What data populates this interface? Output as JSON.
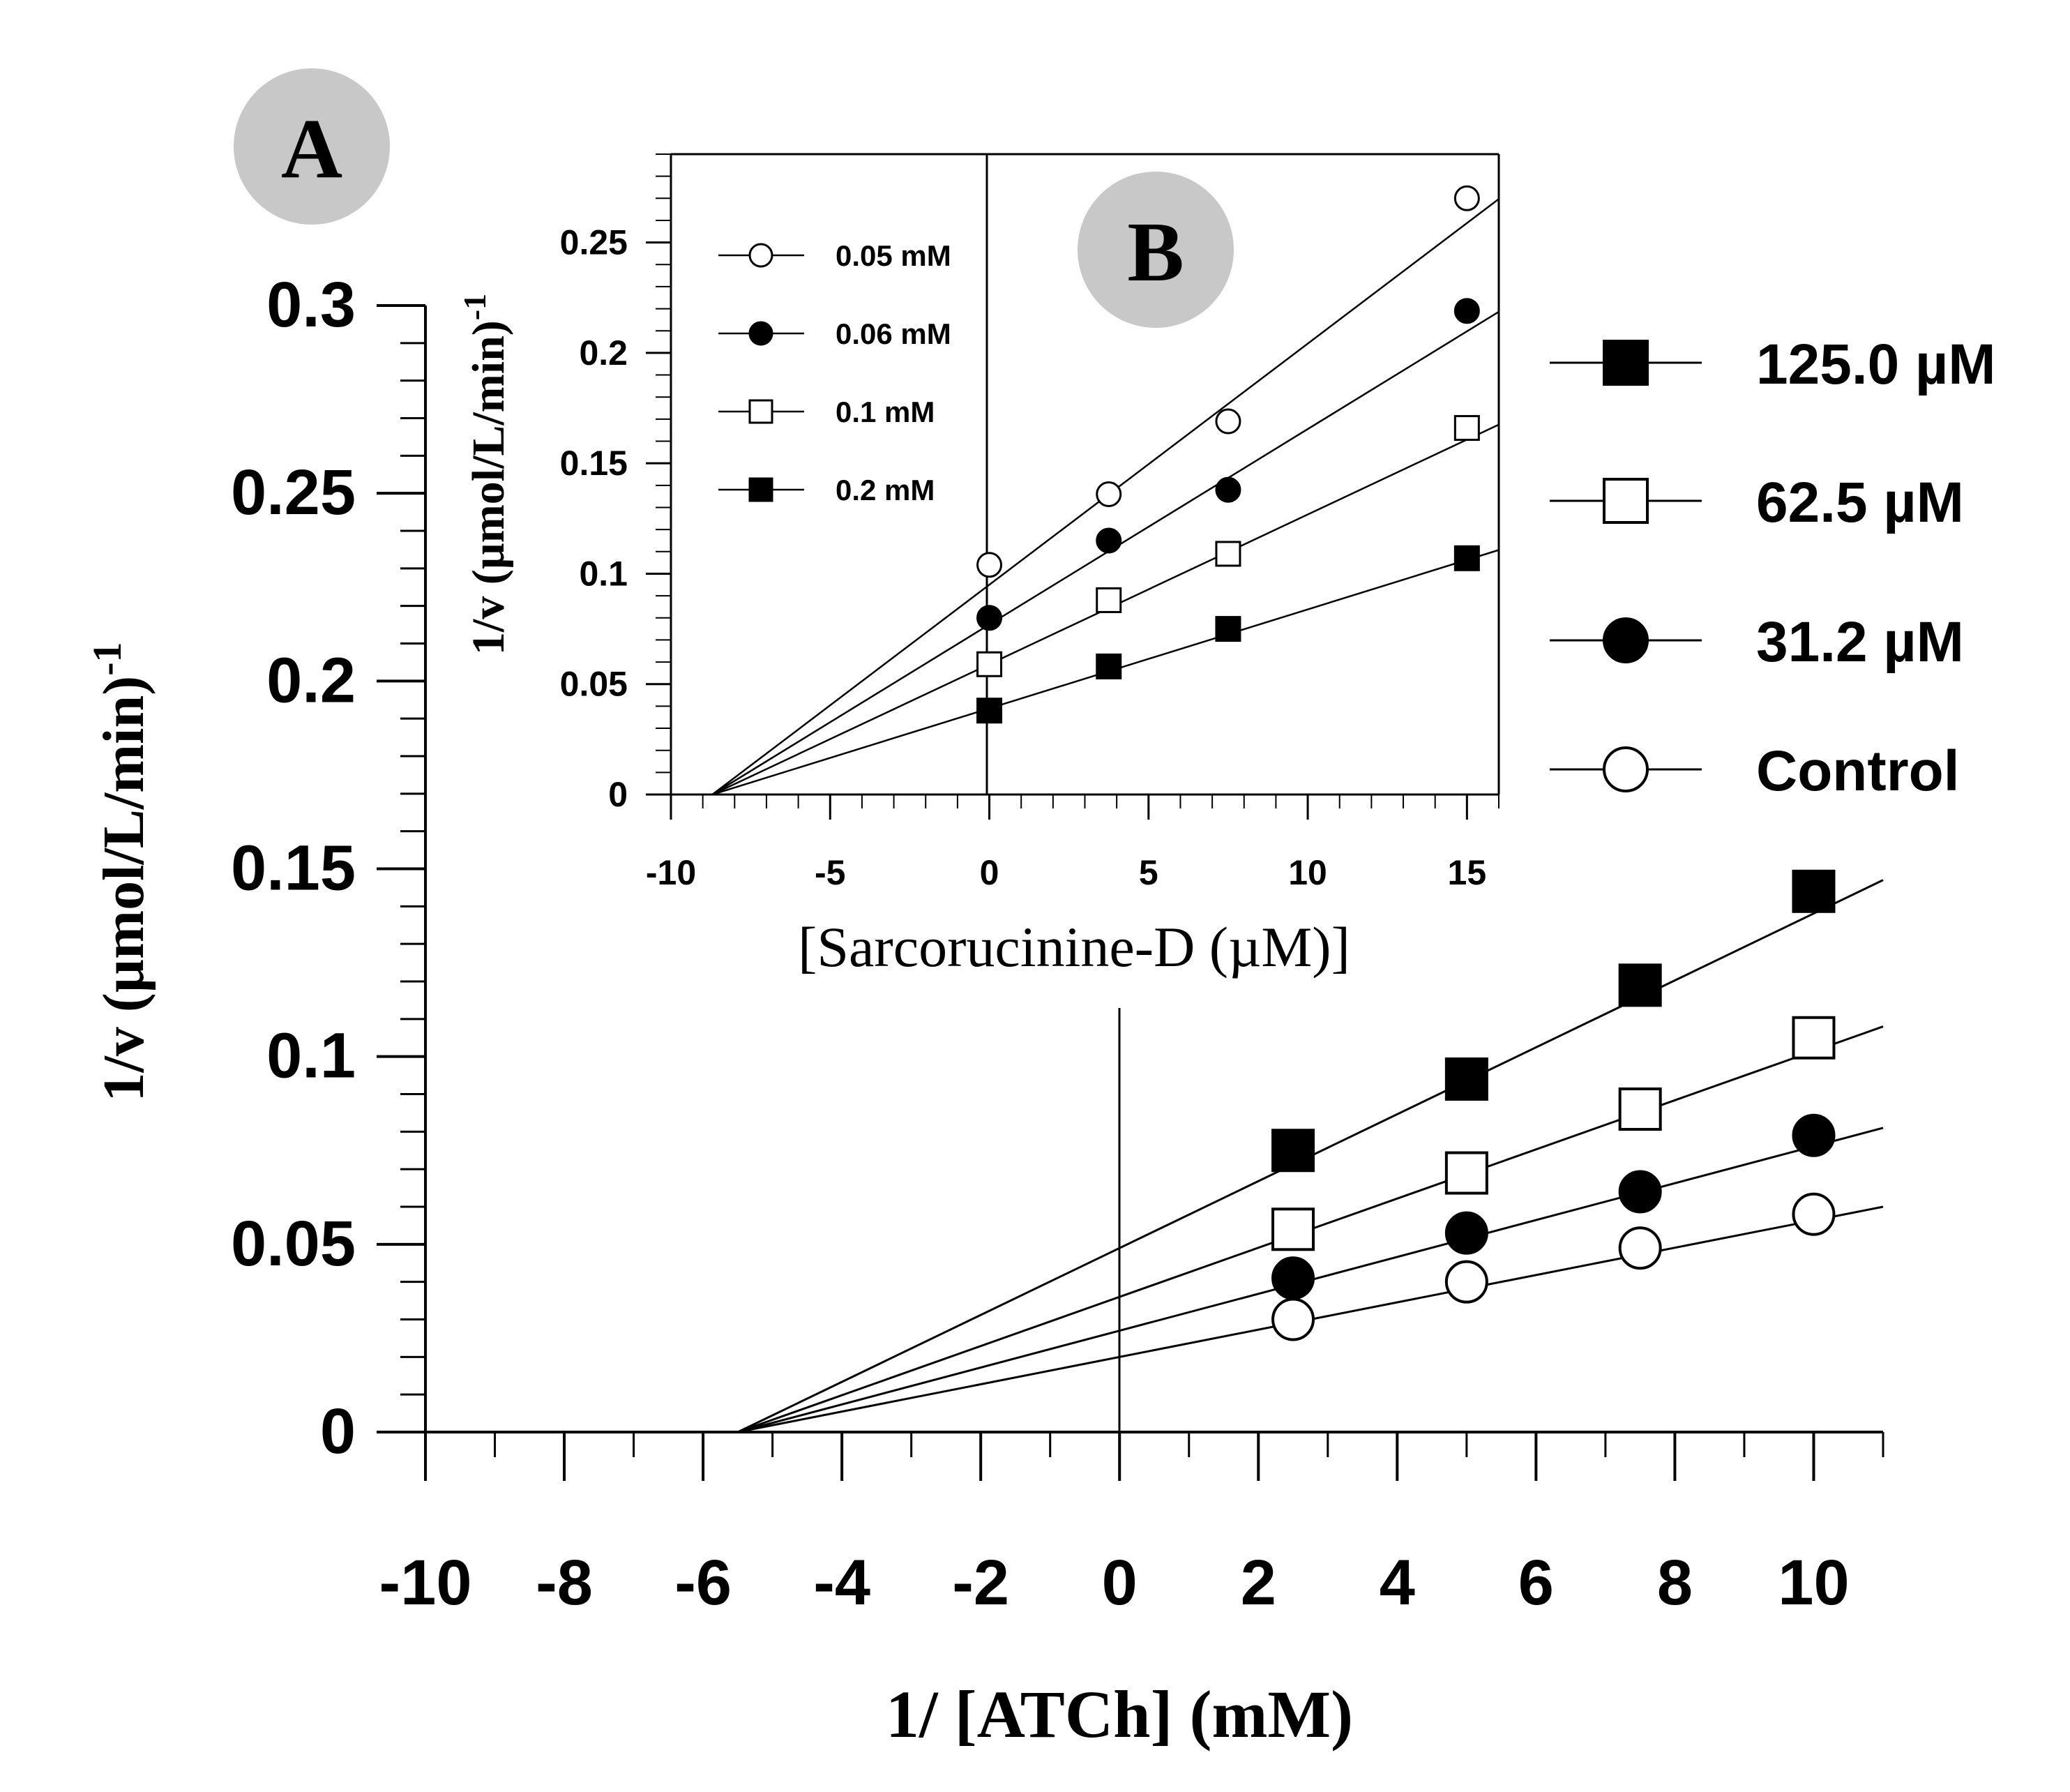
{
  "chart_data": [
    {
      "id": "A",
      "panel_label": "A",
      "type": "line",
      "title": "",
      "xlabel": "1/ [ATCh] (mM)",
      "ylabel": "1/v (µmol/L/min)",
      "ylabel_sup": "-1",
      "xlim": [
        -10,
        11
      ],
      "ylim": [
        0,
        0.3
      ],
      "xticks": [
        -10,
        -8,
        -6,
        -4,
        -2,
        0,
        2,
        4,
        6,
        8,
        10
      ],
      "xtick_labels": [
        "-10",
        "-8",
        "-6",
        "-4",
        "-2",
        "0",
        "2",
        "4",
        "6",
        "8",
        "10"
      ],
      "yticks": [
        0,
        0.05,
        0.1,
        0.15,
        0.2,
        0.25,
        0.3
      ],
      "ytick_labels": [
        "0",
        "0.05",
        "0.1",
        "0.15",
        "0.2",
        "0.25",
        "0.3"
      ],
      "x": [
        2.5,
        5,
        7.5,
        10
      ],
      "series": [
        {
          "name": "125.0 µM",
          "marker": "square-filled",
          "values": [
            0.075,
            0.094,
            0.119,
            0.144
          ],
          "fit": {
            "x_intercept": -5.5,
            "y_intercept": 0.049
          }
        },
        {
          "name": "62.5 µM",
          "marker": "square-open",
          "values": [
            0.054,
            0.069,
            0.086,
            0.105
          ],
          "fit": {
            "x_intercept": -5.5,
            "y_intercept": 0.036
          }
        },
        {
          "name": "31.2 µM",
          "marker": "circle-filled",
          "values": [
            0.041,
            0.053,
            0.064,
            0.079
          ],
          "fit": {
            "x_intercept": -5.5,
            "y_intercept": 0.027
          }
        },
        {
          "name": "Control",
          "marker": "circle-open",
          "values": [
            0.03,
            0.04,
            0.049,
            0.058
          ],
          "fit": {
            "x_intercept": -5.5,
            "y_intercept": 0.02
          }
        }
      ],
      "legend_position": "right"
    },
    {
      "id": "B",
      "panel_label": "B",
      "type": "line",
      "title": "",
      "xlabel": "[Sarcorucinine-D (µM)]",
      "ylabel": "1/v (µmol/L/min)",
      "ylabel_sup": "-1",
      "xlim": [
        -10,
        16
      ],
      "ylim": [
        0,
        0.29
      ],
      "xticks": [
        -10,
        -5,
        0,
        5,
        10,
        15
      ],
      "xtick_labels": [
        "-10",
        "-5",
        "0",
        "5",
        "10",
        "15"
      ],
      "yticks": [
        0,
        0.05,
        0.1,
        0.15,
        0.2,
        0.25
      ],
      "ytick_labels": [
        "0",
        "0.05",
        "0.1",
        "0.15",
        "0.2",
        "0.25"
      ],
      "x": [
        0,
        3.75,
        7.5,
        15
      ],
      "series": [
        {
          "name": "0.05 mM",
          "marker": "circle-open",
          "values": [
            0.104,
            0.136,
            0.169,
            0.27
          ],
          "fit": {
            "x_intercept": -8.7,
            "y_intercept": 0.095
          }
        },
        {
          "name": "0.06 mM",
          "marker": "circle-filled",
          "values": [
            0.08,
            0.115,
            0.138,
            0.219
          ],
          "fit": {
            "x_intercept": -8.7,
            "y_intercept": 0.077
          }
        },
        {
          "name": "0.1 mM",
          "marker": "square-open",
          "values": [
            0.059,
            0.088,
            0.109,
            0.166
          ],
          "fit": {
            "x_intercept": -8.7,
            "y_intercept": 0.059
          }
        },
        {
          "name": "0.2 mM",
          "marker": "square-filled",
          "values": [
            0.038,
            0.058,
            0.075,
            0.107
          ],
          "fit": {
            "x_intercept": -8.7,
            "y_intercept": 0.039
          }
        }
      ],
      "legend_position": "top-left"
    }
  ]
}
